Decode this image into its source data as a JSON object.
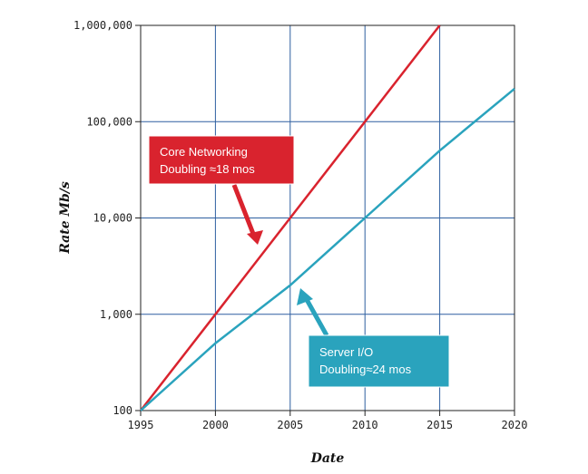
{
  "chart_data": {
    "type": "line",
    "title": "",
    "xlabel": "Date",
    "ylabel": "Rate Mb/s",
    "x_ticks": [
      "1995",
      "2000",
      "2005",
      "2010",
      "2015",
      "2020"
    ],
    "y_ticks": [
      "100",
      "1,000",
      "10,000",
      "100,000",
      "1,000,000"
    ],
    "xlim": [
      1995,
      2020
    ],
    "ylim": [
      100,
      1000000
    ],
    "y_scale": "log",
    "grid": true,
    "series": [
      {
        "color": "#d9232e",
        "x": [
          1995,
          2000,
          2005,
          2010,
          2015
        ],
        "y": [
          100,
          1000,
          10000,
          100000,
          1000000
        ]
      },
      {
        "color": "#2aa3bd",
        "x": [
          1995,
          2000,
          2005,
          2010,
          2015,
          2020
        ],
        "y": [
          100,
          500,
          2000,
          10000,
          50000,
          220000
        ]
      }
    ],
    "annotations": [
      {
        "line1": "Core Networking",
        "line2": "Doubling ≈18 mos",
        "color": "#d9232e",
        "points_to": {
          "x": 2003.7,
          "y": 6000
        }
      },
      {
        "line1": "Server I/O",
        "line2": "Doubling≈24 mos",
        "color": "#2aa3bd",
        "points_to": {
          "x": 2005.7,
          "y": 1700
        }
      }
    ]
  }
}
